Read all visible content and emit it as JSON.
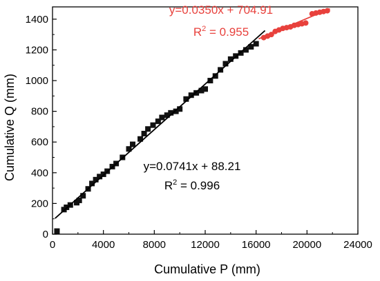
{
  "chart_data": {
    "type": "scatter",
    "xlabel": "Cumulative P (mm)",
    "ylabel": "Cumulative Q (mm)",
    "xlim": [
      0,
      24000
    ],
    "ylim": [
      0,
      1480
    ],
    "x_ticks": [
      "0",
      "4000",
      "8000",
      "12000",
      "16000",
      "20000",
      "24000"
    ],
    "y_ticks": [
      "0",
      "200",
      "400",
      "600",
      "800",
      "1000",
      "1200",
      "1400"
    ],
    "grid": false,
    "legend": "none",
    "series": [
      {
        "marker": "square",
        "color": "#111111",
        "points": [
          [
            350,
            20
          ],
          [
            900,
            160
          ],
          [
            1100,
            175
          ],
          [
            1400,
            190
          ],
          [
            1900,
            205
          ],
          [
            2100,
            220
          ],
          [
            2400,
            250
          ],
          [
            2800,
            295
          ],
          [
            3100,
            330
          ],
          [
            3400,
            355
          ],
          [
            3700,
            375
          ],
          [
            4000,
            390
          ],
          [
            4300,
            410
          ],
          [
            4700,
            440
          ],
          [
            5000,
            460
          ],
          [
            5500,
            500
          ],
          [
            6000,
            555
          ],
          [
            6300,
            585
          ],
          [
            6900,
            620
          ],
          [
            7200,
            655
          ],
          [
            7500,
            685
          ],
          [
            7900,
            710
          ],
          [
            8300,
            735
          ],
          [
            8600,
            760
          ],
          [
            9000,
            775
          ],
          [
            9300,
            790
          ],
          [
            9700,
            800
          ],
          [
            10000,
            815
          ],
          [
            10500,
            880
          ],
          [
            10900,
            905
          ],
          [
            11300,
            920
          ],
          [
            11700,
            935
          ],
          [
            12000,
            945
          ],
          [
            12400,
            1000
          ],
          [
            12800,
            1030
          ],
          [
            13200,
            1070
          ],
          [
            13600,
            1110
          ],
          [
            14000,
            1140
          ],
          [
            14400,
            1160
          ],
          [
            14800,
            1180
          ],
          [
            15200,
            1200
          ],
          [
            15600,
            1220
          ],
          [
            16000,
            1240
          ]
        ]
      },
      {
        "marker": "circle",
        "color": "#e8413c",
        "points": [
          [
            16600,
            1280
          ],
          [
            16900,
            1290
          ],
          [
            17200,
            1300
          ],
          [
            17500,
            1320
          ],
          [
            17800,
            1330
          ],
          [
            18100,
            1340
          ],
          [
            18400,
            1345
          ],
          [
            18700,
            1350
          ],
          [
            19000,
            1360
          ],
          [
            19300,
            1365
          ],
          [
            19600,
            1370
          ],
          [
            19900,
            1375
          ],
          [
            20400,
            1435
          ],
          [
            20700,
            1440
          ],
          [
            21000,
            1445
          ],
          [
            21300,
            1450
          ],
          [
            21600,
            1455
          ]
        ]
      }
    ],
    "fits": [
      {
        "slope": 0.0741,
        "intercept": 88.21,
        "x_range": [
          200,
          16700
        ],
        "color": "#000000",
        "equation": "y=0.0741x + 88.21",
        "r2_prefix": "R",
        "r2_sup": "2",
        "r2_rest": " = 0.996"
      },
      {
        "slope": 0.035,
        "intercept": 704.91,
        "x_range": [
          16200,
          21800
        ],
        "color": "#e8413c",
        "equation": "y=0.0350x + 704.91",
        "r2_prefix": "R",
        "r2_sup": "2",
        "r2_rest": " = 0.955"
      }
    ]
  }
}
